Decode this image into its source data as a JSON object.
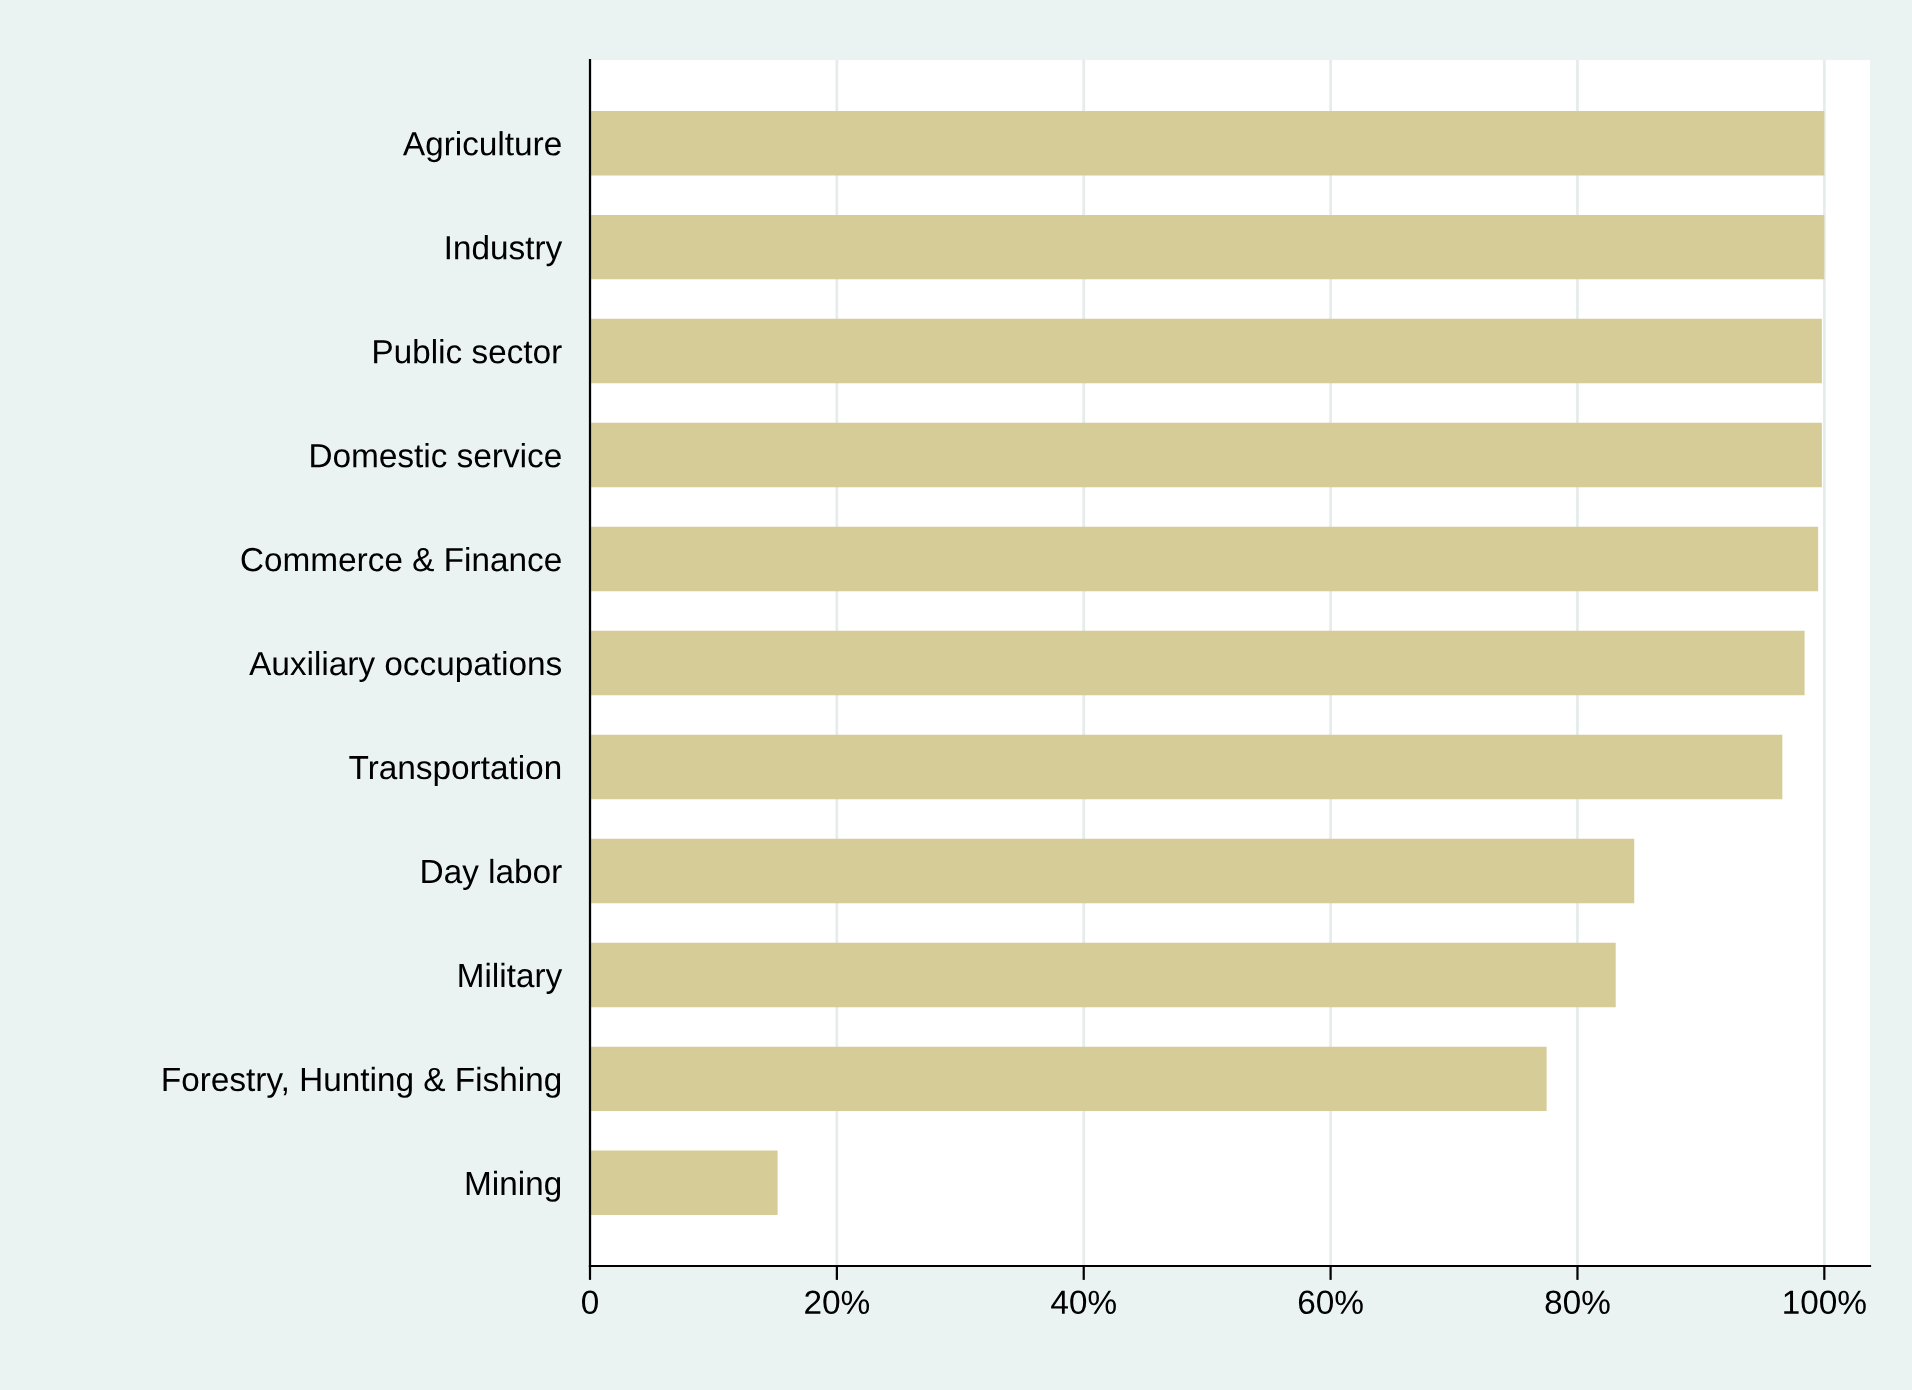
{
  "chart_data": {
    "type": "bar",
    "orientation": "horizontal",
    "categories": [
      "Agriculture",
      "Industry",
      "Public sector",
      "Domestic service",
      "Commerce & Finance",
      "Auxiliary occupations",
      "Transportation",
      "Day labor",
      "Military",
      "Forestry, Hunting & Fishing",
      "Mining"
    ],
    "values": [
      100,
      100,
      99.8,
      99.8,
      99.5,
      98.4,
      96.6,
      84.6,
      83.1,
      77.5,
      15.2
    ],
    "color": "#d6cc97",
    "xlim": [
      0,
      103.7
    ],
    "xticks": [
      0,
      {
        "value": 20,
        "label": "20%"
      },
      {
        "value": 40,
        "label": "40%"
      },
      {
        "value": 60,
        "label": "60%"
      },
      {
        "value": 80,
        "label": "80%"
      },
      {
        "value": 100,
        "label": "100%"
      }
    ],
    "grid": "x"
  }
}
